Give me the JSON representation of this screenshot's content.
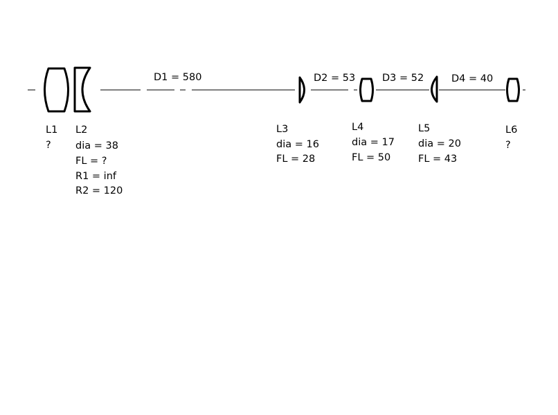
{
  "distances": [
    {
      "label": "D1 = 580"
    },
    {
      "label": "D2 = 53"
    },
    {
      "label": "D3 = 52"
    },
    {
      "label": "D4 = 40"
    }
  ],
  "lenses": [
    {
      "name": "L1",
      "lines": [
        "?"
      ]
    },
    {
      "name": "L2",
      "lines": [
        "dia = 38",
        "FL = ?",
        "R1 = inf",
        "R2 = 120"
      ]
    },
    {
      "name": "L3",
      "lines": [
        "dia = 16",
        "FL = 28"
      ]
    },
    {
      "name": "L4",
      "lines": [
        "dia = 17",
        "FL = 50"
      ]
    },
    {
      "name": "L5",
      "lines": [
        "dia = 20",
        "FL = 43"
      ]
    },
    {
      "name": "L6",
      "lines": [
        "?"
      ]
    }
  ]
}
